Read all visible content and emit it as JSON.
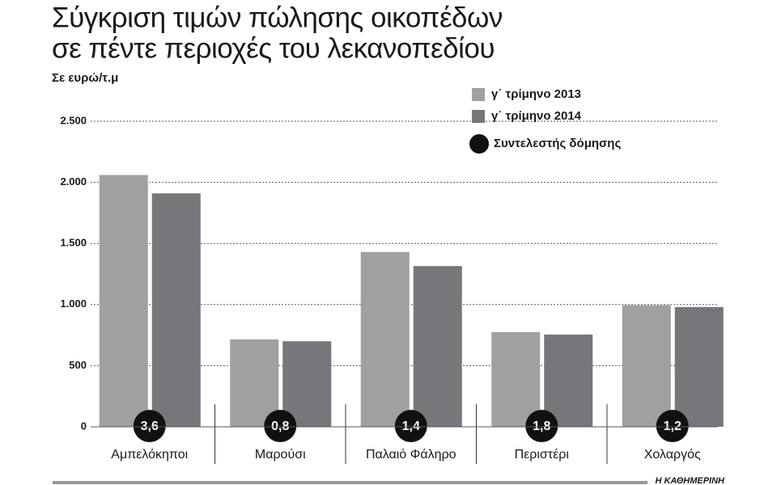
{
  "chart_data": {
    "type": "bar",
    "title_lines": [
      "Σύγκριση τιμών πώλησης οικοπέδων",
      "σε πέντε περιοχές του λεκανοπεδίου"
    ],
    "subtitle": "Σε ευρώ/τ.μ",
    "categories": [
      "Αμπελόκηποι",
      "Μαρούσι",
      "Παλαιό Φάληρο",
      "Περιστέρι",
      "Χολαργός"
    ],
    "series": [
      {
        "name": "γ΄ τρίμηνο 2013",
        "color": "#a0a0a2",
        "values": [
          2060,
          715,
          1430,
          775,
          995
        ]
      },
      {
        "name": "γ΄ τρίμηνο 2014",
        "color": "#77777b",
        "values": [
          1910,
          700,
          1315,
          755,
          980
        ]
      }
    ],
    "coefficient": {
      "name": "Συντελεστής δόμησης",
      "color": "#111111",
      "values": [
        3.6,
        0.8,
        1.4,
        1.8,
        1.2
      ],
      "value_labels": [
        "3,6",
        "0,8",
        "1,4",
        "1,8",
        "1,2"
      ]
    },
    "ylim": [
      0,
      2500
    ],
    "yticks": [
      0,
      500,
      {
        "value": 1000,
        "label": "1.000"
      },
      {
        "value": 1500,
        "label": "1.500"
      },
      {
        "value": 2000,
        "label": "2.000"
      },
      {
        "value": 2500,
        "label": "2.500"
      }
    ],
    "grid": true,
    "source": "Η ΚΑΘΗΜΕΡΙΝΗ"
  }
}
